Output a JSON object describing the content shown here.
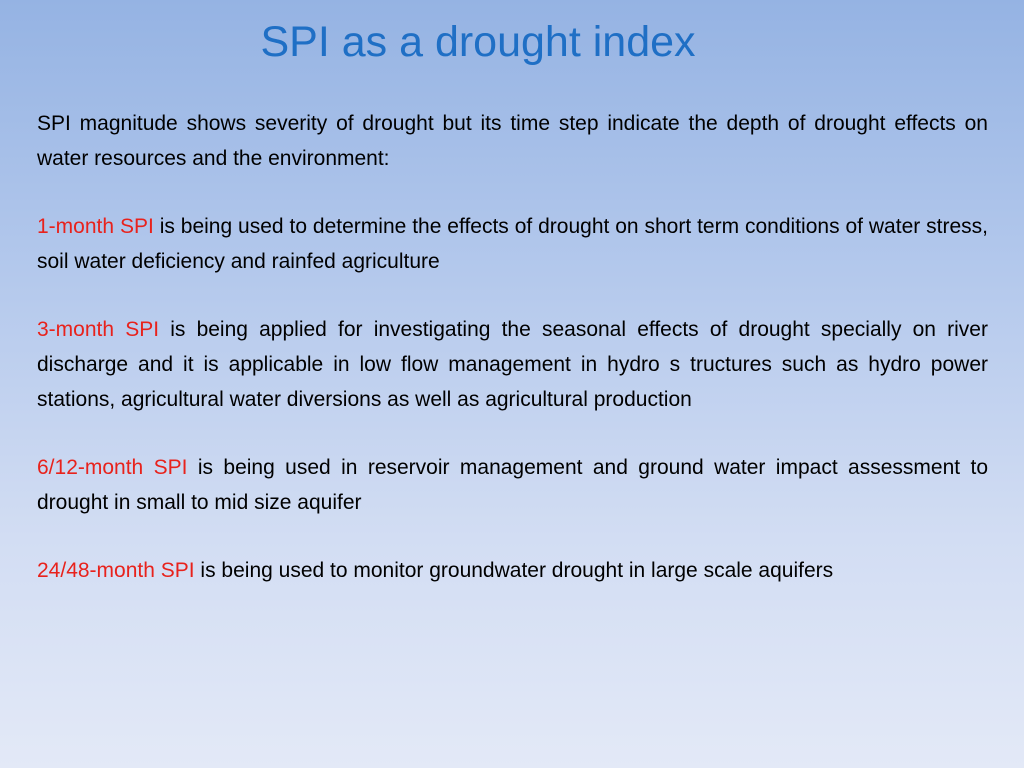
{
  "slide": {
    "title": "SPI as a drought index",
    "intro": "SPI magnitude shows severity of drought but its time step indicate the depth of drought  effects on water resources and the environment:",
    "items": [
      {
        "term": "1-month  SPI",
        "text": " is being used to determine the effects of drought on short term conditions of water stress, soil water deficiency and rainfed agriculture"
      },
      {
        "term": "3-month  SPI",
        "text": " is being applied for investigating the seasonal effects of drought specially on river discharge and it is applicable in low flow management in hydro s tructures such as  hydro power stations, agricultural water diversions as well as agricultural production"
      },
      {
        "term": "6/12-month SPI",
        "text": " is being used in reservoir management and ground water impact assessment to drought in small to mid size aquifer"
      },
      {
        "term": "24/48-month  SPI",
        "text": " is being used to monitor groundwater drought in large scale aquifers"
      }
    ]
  },
  "colors": {
    "title": "#1f6fc5",
    "highlight": "#e8221c",
    "body_text": "#000000",
    "background_top": "#95b3e3",
    "background_bottom": "#e3e9f7"
  }
}
